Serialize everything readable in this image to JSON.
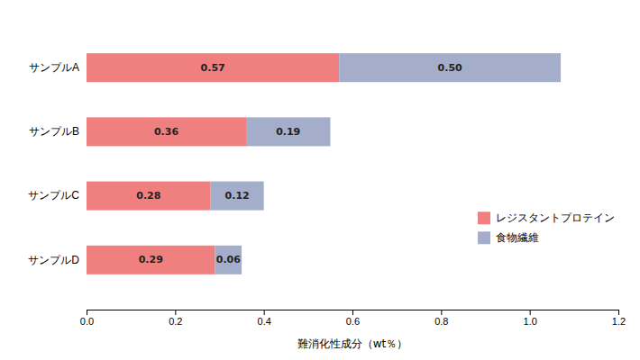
{
  "chart_data": {
    "type": "bar",
    "orientation": "horizontal",
    "stacked": true,
    "data_labels": true,
    "grid": false,
    "legend": "lower right",
    "categories": [
      "サンプルD",
      "サンプルC",
      "サンプルB",
      "サンプルA"
    ],
    "series": [
      {
        "name": "レジスタントプロテイン",
        "color": "#F08080",
        "values": [
          0.29,
          0.28,
          0.36,
          0.57
        ],
        "value_labels": [
          "0.29",
          "0.28",
          "0.36",
          "0.57"
        ]
      },
      {
        "name": "食物繊維",
        "color": "#A4AECB",
        "values": [
          0.06,
          0.12,
          0.19,
          0.5
        ],
        "value_labels": [
          "0.06",
          "0.12",
          "0.19",
          "0.50"
        ]
      }
    ],
    "xlabel": "難消化性成分（wt％）",
    "xlim": [
      0.0,
      1.2
    ],
    "xticks": [
      {
        "value": 0.0,
        "label": "0.0"
      },
      0.2,
      0.4,
      0.6,
      0.8,
      {
        "value": 1.0,
        "label": "1.0"
      },
      1.2
    ]
  }
}
